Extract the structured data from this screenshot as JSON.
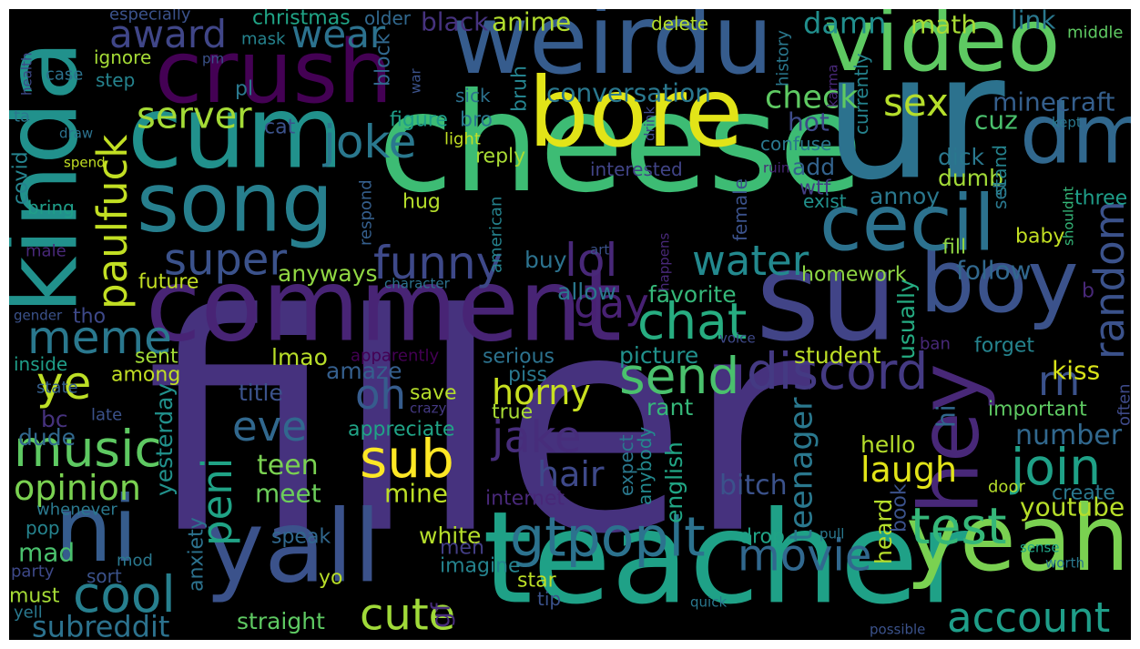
{
  "palette": {
    "background": "#000000",
    "frame": "#ffffff",
    "colormap": [
      "#440154",
      "#46327e",
      "#365c8d",
      "#277f8e",
      "#1fa187",
      "#4ac16d",
      "#a0da39",
      "#fde725"
    ]
  },
  "words": [
    {
      "text": "filler",
      "color": "#46327e"
    },
    {
      "text": "cheese",
      "color": "#3dbc74"
    },
    {
      "text": "teacher",
      "color": "#1fa187"
    },
    {
      "text": "comment",
      "color": "#482475"
    },
    {
      "text": "su",
      "color": "#414487"
    },
    {
      "text": "ur",
      "color": "#2c728e"
    },
    {
      "text": "weirdu",
      "color": "#365c8d"
    },
    {
      "text": "bore",
      "color": "#e2e418"
    },
    {
      "text": "crush",
      "color": "#440154"
    },
    {
      "text": "cum",
      "color": "#21918c"
    },
    {
      "text": "video",
      "color": "#5ec962"
    },
    {
      "text": "yall",
      "color": "#3b528b"
    },
    {
      "text": "song",
      "color": "#277f8e"
    },
    {
      "text": "yeah",
      "color": "#7ad151"
    },
    {
      "text": "boy",
      "color": "#3b528b"
    },
    {
      "text": "cecil",
      "color": "#2c728e"
    },
    {
      "text": "ni",
      "color": "#365c8d"
    },
    {
      "text": "kinda",
      "color": "#21918c"
    },
    {
      "text": "dm",
      "color": "#31688e"
    },
    {
      "text": "hey",
      "color": "#482878"
    },
    {
      "text": "gtpoplt",
      "color": "#2c728e"
    },
    {
      "text": "test",
      "color": "#35b779"
    },
    {
      "text": "music",
      "color": "#5ec962"
    },
    {
      "text": "join",
      "color": "#1fa187"
    },
    {
      "text": "chat",
      "color": "#27ad81"
    },
    {
      "text": "discord",
      "color": "#443a83"
    },
    {
      "text": "cool",
      "color": "#277f8e"
    },
    {
      "text": "meme",
      "color": "#2a788e"
    },
    {
      "text": "sub",
      "color": "#fde725"
    },
    {
      "text": "send",
      "color": "#4ac16d"
    },
    {
      "text": "movie",
      "color": "#31688e"
    },
    {
      "text": "paulfuck",
      "color": "#c2df23"
    },
    {
      "text": "eve",
      "color": "#31688e"
    },
    {
      "text": "joke",
      "color": "#2a788e"
    },
    {
      "text": "account",
      "color": "#1f9e89"
    },
    {
      "text": "cute",
      "color": "#a0da39"
    },
    {
      "text": "jake",
      "color": "#472d7b"
    },
    {
      "text": "lol",
      "color": "#482878"
    },
    {
      "text": "funny",
      "color": "#3e4989"
    },
    {
      "text": "super",
      "color": "#3b528b"
    },
    {
      "text": "ye",
      "color": "#bddf26"
    },
    {
      "text": "oh",
      "color": "#365c8d"
    },
    {
      "text": "water",
      "color": "#23898e"
    },
    {
      "text": "award",
      "color": "#404688"
    },
    {
      "text": "wear",
      "color": "#2c728e"
    },
    {
      "text": "gay",
      "color": "#482173"
    },
    {
      "text": "random",
      "color": "#3b528b"
    },
    {
      "text": "server",
      "color": "#a5db36"
    },
    {
      "text": "opinion",
      "color": "#7ad151"
    },
    {
      "text": "rn",
      "color": "#3b528b"
    },
    {
      "text": "hair",
      "color": "#3e4989"
    },
    {
      "text": "peni",
      "color": "#20a386"
    },
    {
      "text": "horny",
      "color": "#c8e020"
    },
    {
      "text": "sex",
      "color": "#b5de2b"
    },
    {
      "text": "laugh",
      "color": "#e2e418"
    },
    {
      "text": "subreddit",
      "color": "#2c728e"
    },
    {
      "text": "teenager",
      "color": "#2a788e"
    },
    {
      "text": "youtube",
      "color": "#b8de29"
    },
    {
      "text": "check",
      "color": "#5ec962"
    },
    {
      "text": "follow",
      "color": "#31688e"
    },
    {
      "text": "damn",
      "color": "#218f8d"
    },
    {
      "text": "number",
      "color": "#31688e"
    },
    {
      "text": "minecraft",
      "color": "#355f8d"
    },
    {
      "text": "conversation",
      "color": "#2a788e"
    },
    {
      "text": "anime",
      "color": "#b2dd2d"
    },
    {
      "text": "black",
      "color": "#46327e"
    },
    {
      "text": "christmas",
      "color": "#20a486"
    },
    {
      "text": "math",
      "color": "#a8db34"
    },
    {
      "text": "link",
      "color": "#2a788e"
    },
    {
      "text": "teen",
      "color": "#7ad151"
    },
    {
      "text": "meet",
      "color": "#6ccd5a"
    },
    {
      "text": "mine",
      "color": "#bddf26"
    },
    {
      "text": "bitch",
      "color": "#3b528b"
    },
    {
      "text": "hello",
      "color": "#b5de2b"
    },
    {
      "text": "white",
      "color": "#b5de2b"
    },
    {
      "text": "straight",
      "color": "#5ec962"
    },
    {
      "text": "mad",
      "color": "#4ac16d"
    },
    {
      "text": "imagine",
      "color": "#25838e"
    },
    {
      "text": "men",
      "color": "#433e85"
    },
    {
      "text": "gf",
      "color": "#472c7a"
    },
    {
      "text": "picture",
      "color": "#21918c"
    },
    {
      "text": "student",
      "color": "#bddf26"
    },
    {
      "text": "kiss",
      "color": "#d8e219"
    },
    {
      "text": "favorite",
      "color": "#35b779"
    },
    {
      "text": "allow",
      "color": "#2a788e"
    },
    {
      "text": "homework",
      "color": "#8fd744"
    },
    {
      "text": "dick",
      "color": "#2a788e"
    },
    {
      "text": "hot",
      "color": "#3e4a89"
    },
    {
      "text": "add",
      "color": "#33638d"
    },
    {
      "text": "annoy",
      "color": "#2a788e"
    },
    {
      "text": "cuz",
      "color": "#4ac16d"
    },
    {
      "text": "dumb",
      "color": "#a2da37"
    },
    {
      "text": "fill",
      "color": "#90d743"
    },
    {
      "text": "baby",
      "color": "#c2df23"
    },
    {
      "text": "usually",
      "color": "#25ac82"
    },
    {
      "text": "heard",
      "color": "#b5de2b"
    },
    {
      "text": "english",
      "color": "#21a685"
    },
    {
      "text": "book",
      "color": "#3b528b"
    },
    {
      "text": "create",
      "color": "#2a788e"
    },
    {
      "text": "door",
      "color": "#b5de2b"
    },
    {
      "text": "hi",
      "color": "#31688e"
    },
    {
      "text": "often",
      "color": "#3e4a89"
    },
    {
      "text": "important",
      "color": "#5ec962"
    },
    {
      "text": "forget",
      "color": "#25838e"
    },
    {
      "text": "ban",
      "color": "#482878"
    },
    {
      "text": "apparently",
      "color": "#440154"
    },
    {
      "text": "anyways",
      "color": "#90d743"
    },
    {
      "text": "future",
      "color": "#c2df23"
    },
    {
      "text": "tho",
      "color": "#3e4989"
    },
    {
      "text": "sent",
      "color": "#a2da37"
    },
    {
      "text": "among",
      "color": "#c2df23"
    },
    {
      "text": "inside",
      "color": "#1f9e89"
    },
    {
      "text": "state",
      "color": "#355f8d"
    },
    {
      "text": "late",
      "color": "#3b528b"
    },
    {
      "text": "bc",
      "color": "#46327e"
    },
    {
      "text": "dude",
      "color": "#31688e"
    },
    {
      "text": "whenever",
      "color": "#2a788e"
    },
    {
      "text": "pop",
      "color": "#25838e"
    },
    {
      "text": "party",
      "color": "#3e4989"
    },
    {
      "text": "must",
      "color": "#a5db36"
    },
    {
      "text": "yell",
      "color": "#2a788e"
    },
    {
      "text": "mod",
      "color": "#2a788e"
    },
    {
      "text": "sort",
      "color": "#3b528b"
    },
    {
      "text": "yo",
      "color": "#b8de29"
    },
    {
      "text": "anxiety",
      "color": "#2c728e"
    },
    {
      "text": "speak",
      "color": "#31688e"
    },
    {
      "text": "yesterday",
      "color": "#21918c"
    },
    {
      "text": "lmao",
      "color": "#b8de29"
    },
    {
      "text": "amaze",
      "color": "#355f8d"
    },
    {
      "text": "title",
      "color": "#3b528b"
    },
    {
      "text": "appreciate",
      "color": "#20a386"
    },
    {
      "text": "save",
      "color": "#b5de2b"
    },
    {
      "text": "true",
      "color": "#a8db34"
    },
    {
      "text": "crazy",
      "color": "#443983"
    },
    {
      "text": "piss",
      "color": "#2a788e"
    },
    {
      "text": "serious",
      "color": "#2c728e"
    },
    {
      "text": "rant",
      "color": "#35b779"
    },
    {
      "text": "expect",
      "color": "#2a788e"
    },
    {
      "text": "anybody",
      "color": "#23898e"
    },
    {
      "text": "internet",
      "color": "#482878"
    },
    {
      "text": "drop",
      "color": "#20a386"
    },
    {
      "text": "tip",
      "color": "#3b528b"
    },
    {
      "text": "star",
      "color": "#bddf26"
    },
    {
      "text": "quick",
      "color": "#2a788e"
    },
    {
      "text": "possible",
      "color": "#3b528b"
    },
    {
      "text": "sense",
      "color": "#20a486"
    },
    {
      "text": "worth",
      "color": "#2a788e"
    },
    {
      "text": "pull",
      "color": "#2a788e"
    },
    {
      "text": "voice",
      "color": "#3e4989"
    },
    {
      "text": "character",
      "color": "#2c728e"
    },
    {
      "text": "art",
      "color": "#3b528b"
    },
    {
      "text": "happens",
      "color": "#482878"
    },
    {
      "text": "american",
      "color": "#25838e"
    },
    {
      "text": "buy",
      "color": "#2c728e"
    },
    {
      "text": "respond",
      "color": "#355f8d"
    },
    {
      "text": "hug",
      "color": "#b5de2b"
    },
    {
      "text": "reply",
      "color": "#a8db34"
    },
    {
      "text": "interested",
      "color": "#414487"
    },
    {
      "text": "confuse",
      "color": "#2a788e"
    },
    {
      "text": "wtf",
      "color": "#433e85"
    },
    {
      "text": "exist",
      "color": "#21918c"
    },
    {
      "text": "female",
      "color": "#3b528b"
    },
    {
      "text": "ruin",
      "color": "#482878"
    },
    {
      "text": "stand",
      "color": "#25838e"
    },
    {
      "text": "set",
      "color": "#2a788e"
    },
    {
      "text": "shouldnt",
      "color": "#35b779"
    },
    {
      "text": "three",
      "color": "#1f9e89"
    },
    {
      "text": "kept",
      "color": "#2a788e"
    },
    {
      "text": "karma",
      "color": "#482878"
    },
    {
      "text": "history",
      "color": "#2a788e"
    },
    {
      "text": "middle",
      "color": "#5ec962"
    },
    {
      "text": "currently",
      "color": "#25838e"
    },
    {
      "text": "drink",
      "color": "#3e4989"
    },
    {
      "text": "delete",
      "color": "#b5de2b"
    },
    {
      "text": "older",
      "color": "#31688e"
    },
    {
      "text": "especially",
      "color": "#3b528b"
    },
    {
      "text": "mask",
      "color": "#25838e"
    },
    {
      "text": "ignore",
      "color": "#a5db36"
    },
    {
      "text": "step",
      "color": "#25838e"
    },
    {
      "text": "case",
      "color": "#2c728e"
    },
    {
      "text": "health",
      "color": "#3e4989"
    },
    {
      "text": "pm",
      "color": "#3b528b"
    },
    {
      "text": "pl",
      "color": "#2a788e"
    },
    {
      "text": "cat",
      "color": "#3b528b"
    },
    {
      "text": "bro",
      "color": "#2a788e"
    },
    {
      "text": "figure",
      "color": "#1f9e89"
    },
    {
      "text": "light",
      "color": "#c2df23"
    },
    {
      "text": "sick",
      "color": "#2c728e"
    },
    {
      "text": "bruh",
      "color": "#25838e"
    },
    {
      "text": "block",
      "color": "#31688e"
    },
    {
      "text": "war",
      "color": "#3b528b"
    },
    {
      "text": "ta",
      "color": "#2a788e"
    },
    {
      "text": "draw",
      "color": "#2c728e"
    },
    {
      "text": "covid",
      "color": "#25838e"
    },
    {
      "text": "spend",
      "color": "#c2df23"
    },
    {
      "text": "bring",
      "color": "#1f9e89"
    },
    {
      "text": "male",
      "color": "#482878"
    },
    {
      "text": "gender",
      "color": "#3b528b"
    },
    {
      "text": "b",
      "color": "#482878"
    }
  ]
}
